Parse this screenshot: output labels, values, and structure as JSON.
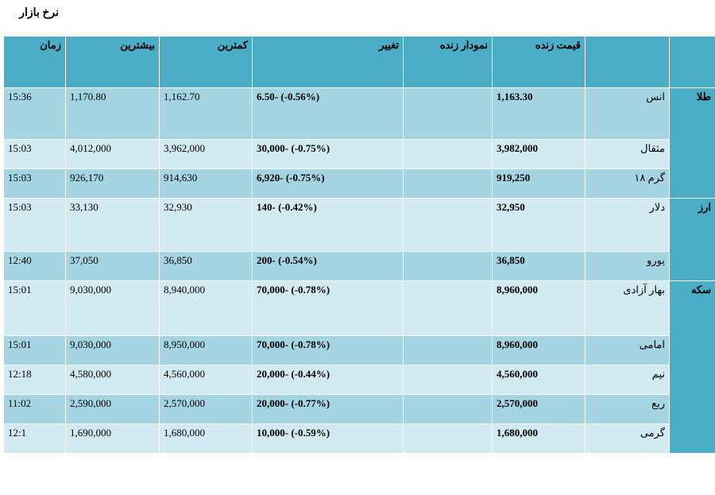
{
  "title": "نرخ بازار",
  "headers": {
    "group": "",
    "item": "",
    "price": "قیمت زنده",
    "chart": "نمودار زنده",
    "change": "تغییر",
    "low": "کمترین",
    "high": "بیشترین",
    "time": "زمان"
  },
  "groups": [
    {
      "name": "طلا",
      "rows": [
        {
          "name": "انس",
          "price": "1,163.30",
          "chart": "",
          "change": "6.50- (-0.56%)",
          "low": "1,162.70",
          "high": "1,170.80",
          "time": "15:36"
        },
        {
          "name": "مثقال",
          "price": "3,982,000",
          "chart": "",
          "change": "30,000- (-0.75%)",
          "low": "3,962,000",
          "high": "4,012,000",
          "time": "15:03"
        },
        {
          "name": "گرم ۱۸",
          "price": "919,250",
          "chart": "",
          "change": "6,920- (-0.75%)",
          "low": "914,630",
          "high": "926,170",
          "time": "15:03"
        }
      ]
    },
    {
      "name": "ارز",
      "rows": [
        {
          "name": "دلار",
          "price": "32,950",
          "chart": "",
          "change": "140- (-0.42%)",
          "low": "32,930",
          "high": "33,130",
          "time": "15:03"
        },
        {
          "name": "یورو",
          "price": "36,850",
          "chart": "",
          "change": "200- (-0.54%)",
          "low": "36,850",
          "high": "37,050",
          "time": "12:40"
        }
      ]
    },
    {
      "name": "سکه",
      "rows": [
        {
          "name": "بهار آزادی",
          "price": "8,960,000",
          "chart": "",
          "change": "70,000- (-0.78%)",
          "low": "8,940,000",
          "high": "9,030,000",
          "time": "15:01"
        },
        {
          "name": "امامی",
          "price": "8,960,000",
          "chart": "",
          "change": "70,000- (-0.78%)",
          "low": "8,950,000",
          "high": "9,030,000",
          "time": "15:01"
        },
        {
          "name": "نیم",
          "price": "4,560,000",
          "chart": "",
          "change": "20,000- (-0.44%)",
          "low": "4,560,000",
          "high": "4,580,000",
          "time": "12:18"
        },
        {
          "name": "ربع",
          "price": "2,570,000",
          "chart": "",
          "change": "20,000- (-0.77%)",
          "low": "2,570,000",
          "high": "2,590,000",
          "time": "11:02"
        },
        {
          "name": "گرمی",
          "price": "1,680,000",
          "chart": "",
          "change": "10,000- (-0.59%)",
          "low": "1,680,000",
          "high": "1,690,000",
          "time": "12:1"
        }
      ]
    }
  ]
}
